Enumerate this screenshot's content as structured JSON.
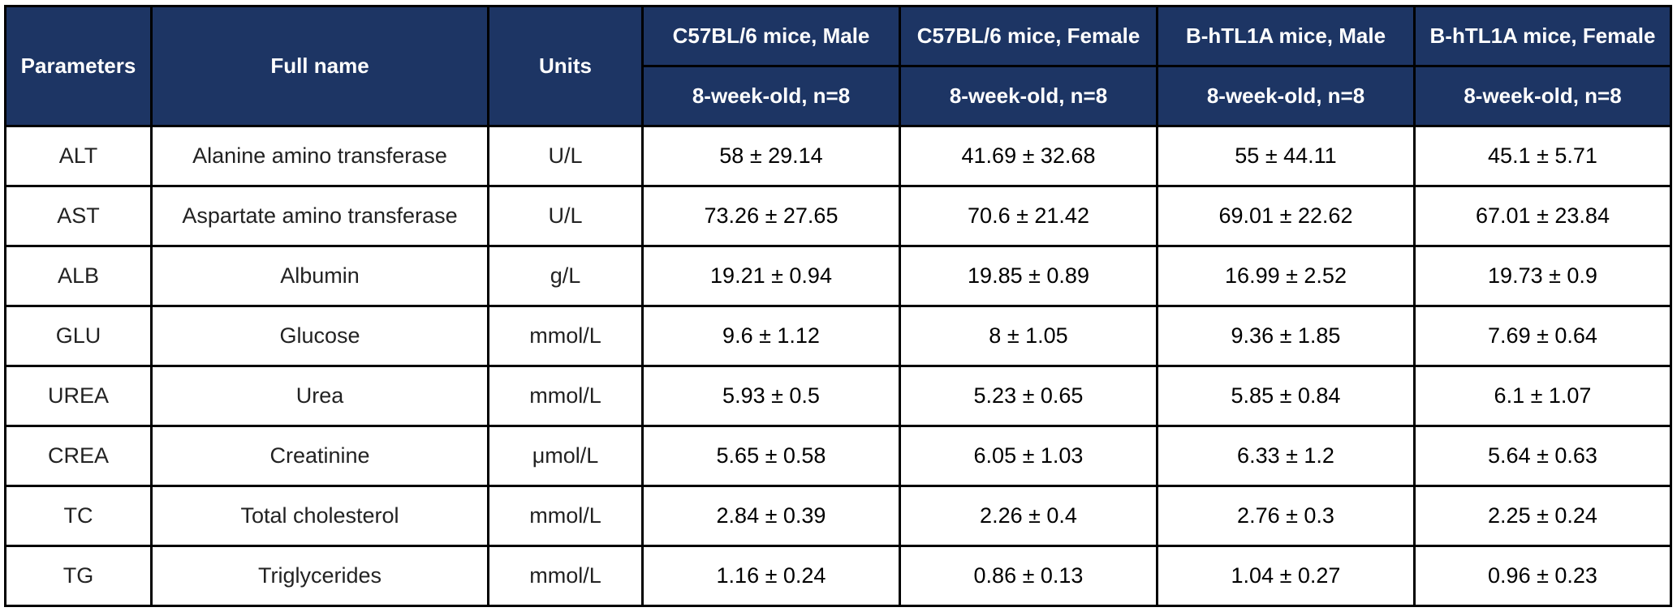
{
  "colors": {
    "header_bg": "#1d3564",
    "header_text": "#ffffff",
    "border": "#000000",
    "cell_bg": "#ffffff"
  },
  "table": {
    "headers": {
      "parameters": "Parameters",
      "full_name": "Full name",
      "units": "Units",
      "groups": [
        {
          "name": "C57BL/6 mice, Male",
          "sub": "8-week-old, n=8"
        },
        {
          "name": "C57BL/6 mice, Female",
          "sub": "8-week-old, n=8"
        },
        {
          "name": "B-hTL1A mice, Male",
          "sub": "8-week-old, n=8"
        },
        {
          "name": "B-hTL1A mice, Female",
          "sub": "8-week-old, n=8"
        }
      ]
    },
    "rows": [
      {
        "param": "ALT",
        "full": "Alanine amino transferase",
        "unit": "U/L",
        "values": [
          "58 ± 29.14",
          "41.69 ± 32.68",
          "55 ± 44.11",
          "45.1 ± 5.71"
        ]
      },
      {
        "param": "AST",
        "full": "Aspartate amino transferase",
        "unit": "U/L",
        "values": [
          "73.26 ± 27.65",
          "70.6 ± 21.42",
          "69.01 ± 22.62",
          "67.01 ± 23.84"
        ]
      },
      {
        "param": "ALB",
        "full": "Albumin",
        "unit": "g/L",
        "values": [
          "19.21 ± 0.94",
          "19.85 ± 0.89",
          "16.99 ± 2.52",
          "19.73 ± 0.9"
        ]
      },
      {
        "param": "GLU",
        "full": "Glucose",
        "unit": "mmol/L",
        "values": [
          "9.6 ± 1.12",
          "8 ± 1.05",
          "9.36 ± 1.85",
          "7.69 ± 0.64"
        ]
      },
      {
        "param": "UREA",
        "full": "Urea",
        "unit": "mmol/L",
        "values": [
          "5.93 ± 0.5",
          "5.23 ± 0.65",
          "5.85 ± 0.84",
          "6.1 ± 1.07"
        ]
      },
      {
        "param": "CREA",
        "full": "Creatinine",
        "unit": "μmol/L",
        "values": [
          "5.65 ± 0.58",
          "6.05 ± 1.03",
          "6.33 ± 1.2",
          "5.64 ± 0.63"
        ]
      },
      {
        "param": "TC",
        "full": "Total cholesterol",
        "unit": "mmol/L",
        "values": [
          "2.84 ± 0.39",
          "2.26 ± 0.4",
          "2.76 ± 0.3",
          "2.25 ± 0.24"
        ]
      },
      {
        "param": "TG",
        "full": "Triglycerides",
        "unit": "mmol/L",
        "values": [
          "1.16 ± 0.24",
          "0.86 ± 0.13",
          "1.04 ± 0.27",
          "0.96 ± 0.23"
        ]
      }
    ]
  }
}
